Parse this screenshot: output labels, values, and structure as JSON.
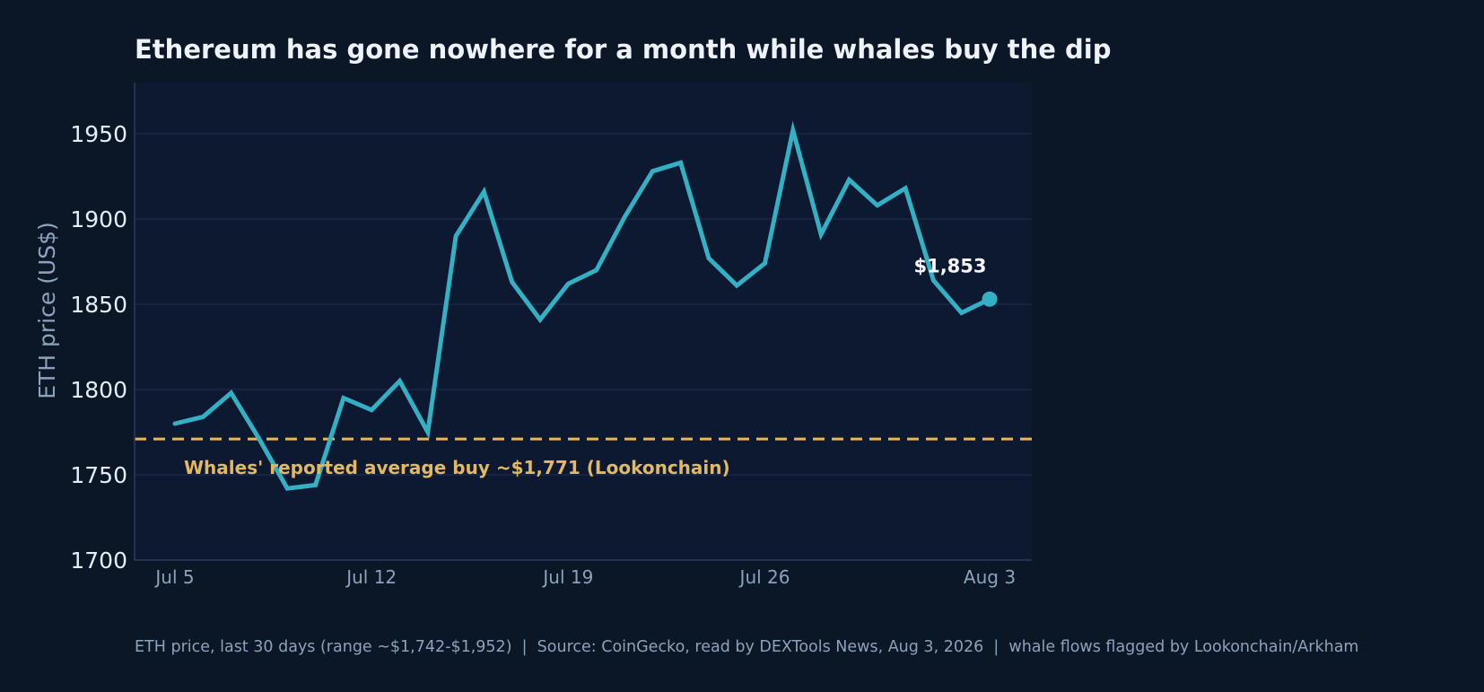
{
  "chart_data": {
    "type": "line",
    "title": "Ethereum has gone nowhere for a month while whales buy the dip",
    "ylabel": "ETH price (US$)",
    "xlabel": "",
    "ylim": [
      1700,
      1980
    ],
    "yticks": [
      1700,
      1750,
      1800,
      1850,
      1900,
      1950
    ],
    "xticks": [
      {
        "label": "Jul 5",
        "day": 0
      },
      {
        "label": "Jul 12",
        "day": 7
      },
      {
        "label": "Jul 19",
        "day": 14
      },
      {
        "label": "Jul 26",
        "day": 21
      },
      {
        "label": "Aug 3",
        "day": 29
      }
    ],
    "grid": "horizontal",
    "series": [
      {
        "color": "#33b0c3",
        "dates": [
          "Jul 5",
          "Jul 6",
          "Jul 7",
          "Jul 8",
          "Jul 9",
          "Jul 10",
          "Jul 11",
          "Jul 12",
          "Jul 13",
          "Jul 14",
          "Jul 15",
          "Jul 16",
          "Jul 17",
          "Jul 18",
          "Jul 19",
          "Jul 20",
          "Jul 21",
          "Jul 22",
          "Jul 23",
          "Jul 24",
          "Jul 25",
          "Jul 26",
          "Jul 27",
          "Jul 28",
          "Jul 29",
          "Jul 30",
          "Jul 31",
          "Aug 1",
          "Aug 2",
          "Aug 3"
        ],
        "values": [
          1780,
          1784,
          1798,
          1771,
          1742,
          1744,
          1795,
          1788,
          1805,
          1775,
          1890,
          1916,
          1863,
          1841,
          1862,
          1870,
          1901,
          1928,
          1933,
          1877,
          1861,
          1874,
          1952,
          1891,
          1923,
          1908,
          1918,
          1864,
          1845,
          1853
        ]
      }
    ],
    "reference_line": {
      "value": 1771,
      "label": "Whales' reported average buy ~$1,771 (Lookonchain)",
      "color": "#e3b860",
      "style": "dashed"
    },
    "end_label": "$1,853",
    "footer": "ETH price, last 30 days (range ~$1,742-$1,952)  |  Source: CoinGecko, read by DEXTools News, Aug 3, 2026  |  whale flows flagged by Lookonchain/Arkham"
  },
  "colors": {
    "background": "#0b1626",
    "plot_background": "#0c1930",
    "grid": "#1c2c4a",
    "axis": "#2a3b5c"
  }
}
